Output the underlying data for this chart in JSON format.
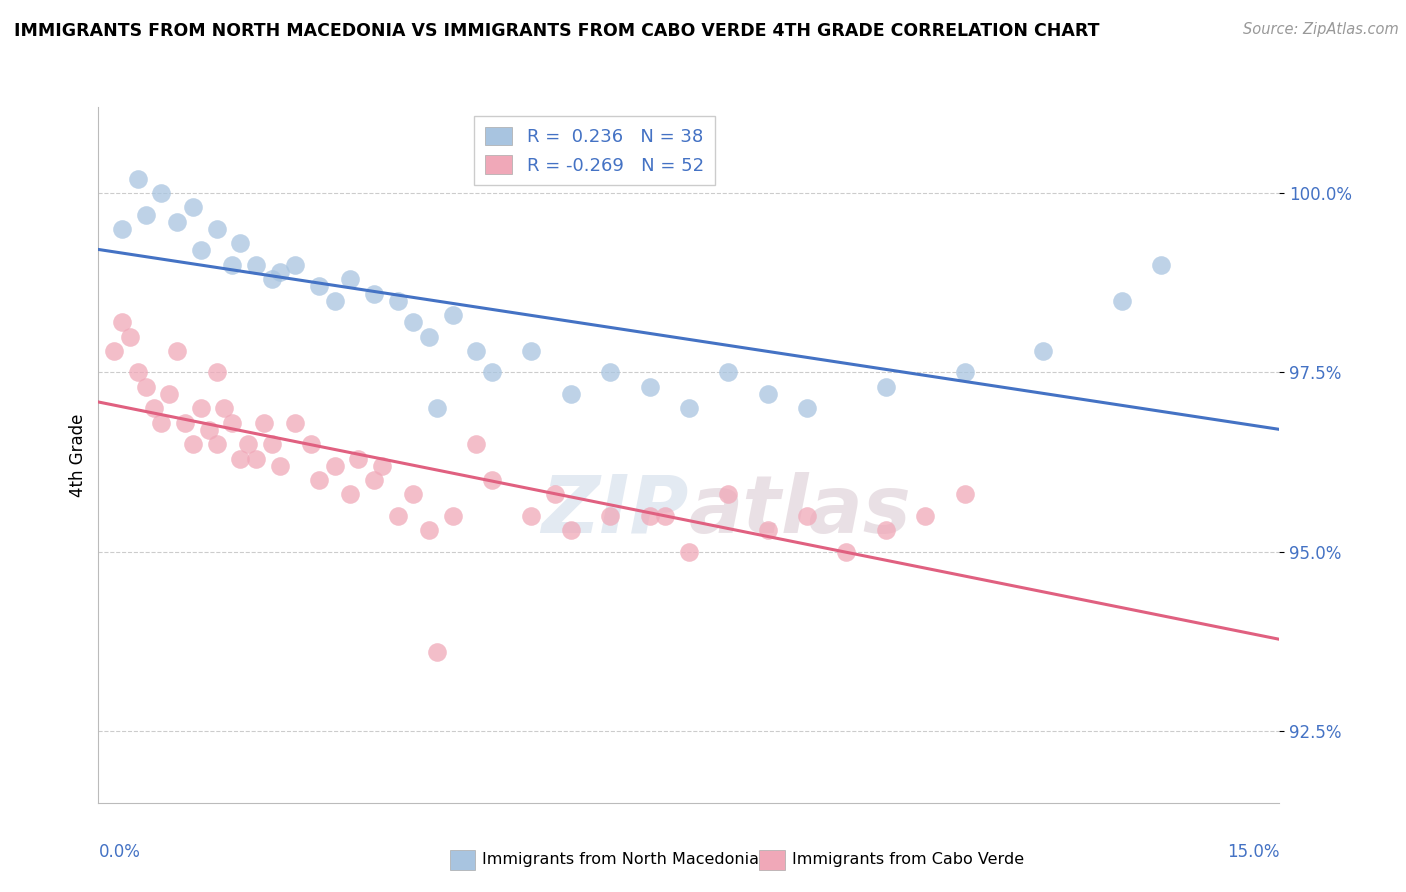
{
  "title": "IMMIGRANTS FROM NORTH MACEDONIA VS IMMIGRANTS FROM CABO VERDE 4TH GRADE CORRELATION CHART",
  "source": "Source: ZipAtlas.com",
  "ylabel": "4th Grade",
  "xmin": 0.0,
  "xmax": 15.0,
  "ymin": 91.5,
  "ymax": 101.2,
  "yticks": [
    92.5,
    95.0,
    97.5,
    100.0
  ],
  "ytick_labels": [
    "92.5%",
    "95.0%",
    "97.5%",
    "100.0%"
  ],
  "r_blue": 0.236,
  "n_blue": 38,
  "r_pink": -0.269,
  "n_pink": 52,
  "blue_color": "#a8c4e0",
  "pink_color": "#f0a8b8",
  "blue_line_color": "#4472c4",
  "pink_line_color": "#e06080",
  "legend_label_blue": "Immigrants from North Macedonia",
  "legend_label_pink": "Immigrants from Cabo Verde",
  "watermark_zip": "ZIP",
  "watermark_atlas": "atlas",
  "blue_scatter_x": [
    0.3,
    0.5,
    0.6,
    0.8,
    1.0,
    1.2,
    1.3,
    1.5,
    1.7,
    1.8,
    2.0,
    2.2,
    2.3,
    2.5,
    2.8,
    3.0,
    3.2,
    3.5,
    3.8,
    4.0,
    4.2,
    4.3,
    4.5,
    4.8,
    5.0,
    5.5,
    6.0,
    6.5,
    7.0,
    7.5,
    8.0,
    8.5,
    9.0,
    10.0,
    11.0,
    12.0,
    13.0,
    13.5
  ],
  "blue_scatter_y": [
    99.5,
    100.2,
    99.7,
    100.0,
    99.6,
    99.8,
    99.2,
    99.5,
    99.0,
    99.3,
    99.0,
    98.8,
    98.9,
    99.0,
    98.7,
    98.5,
    98.8,
    98.6,
    98.5,
    98.2,
    98.0,
    97.0,
    98.3,
    97.8,
    97.5,
    97.8,
    97.2,
    97.5,
    97.3,
    97.0,
    97.5,
    97.2,
    97.0,
    97.3,
    97.5,
    97.8,
    98.5,
    99.0
  ],
  "pink_scatter_x": [
    0.2,
    0.3,
    0.4,
    0.5,
    0.6,
    0.7,
    0.8,
    0.9,
    1.0,
    1.1,
    1.2,
    1.3,
    1.4,
    1.5,
    1.5,
    1.6,
    1.7,
    1.8,
    1.9,
    2.0,
    2.1,
    2.2,
    2.3,
    2.5,
    2.7,
    2.8,
    3.0,
    3.2,
    3.3,
    3.5,
    3.6,
    3.8,
    4.0,
    4.2,
    4.5,
    4.8,
    5.0,
    5.5,
    5.8,
    6.0,
    6.5,
    7.0,
    7.2,
    7.5,
    8.0,
    8.5,
    9.0,
    9.5,
    10.0,
    10.5,
    11.0,
    4.3
  ],
  "pink_scatter_y": [
    97.8,
    98.2,
    98.0,
    97.5,
    97.3,
    97.0,
    96.8,
    97.2,
    97.8,
    96.8,
    96.5,
    97.0,
    96.7,
    96.5,
    97.5,
    97.0,
    96.8,
    96.3,
    96.5,
    96.3,
    96.8,
    96.5,
    96.2,
    96.8,
    96.5,
    96.0,
    96.2,
    95.8,
    96.3,
    96.0,
    96.2,
    95.5,
    95.8,
    95.3,
    95.5,
    96.5,
    96.0,
    95.5,
    95.8,
    95.3,
    95.5,
    95.5,
    95.5,
    95.0,
    95.8,
    95.3,
    95.5,
    95.0,
    95.3,
    95.5,
    95.8,
    93.6
  ],
  "background_color": "#ffffff",
  "grid_color": "#cccccc"
}
